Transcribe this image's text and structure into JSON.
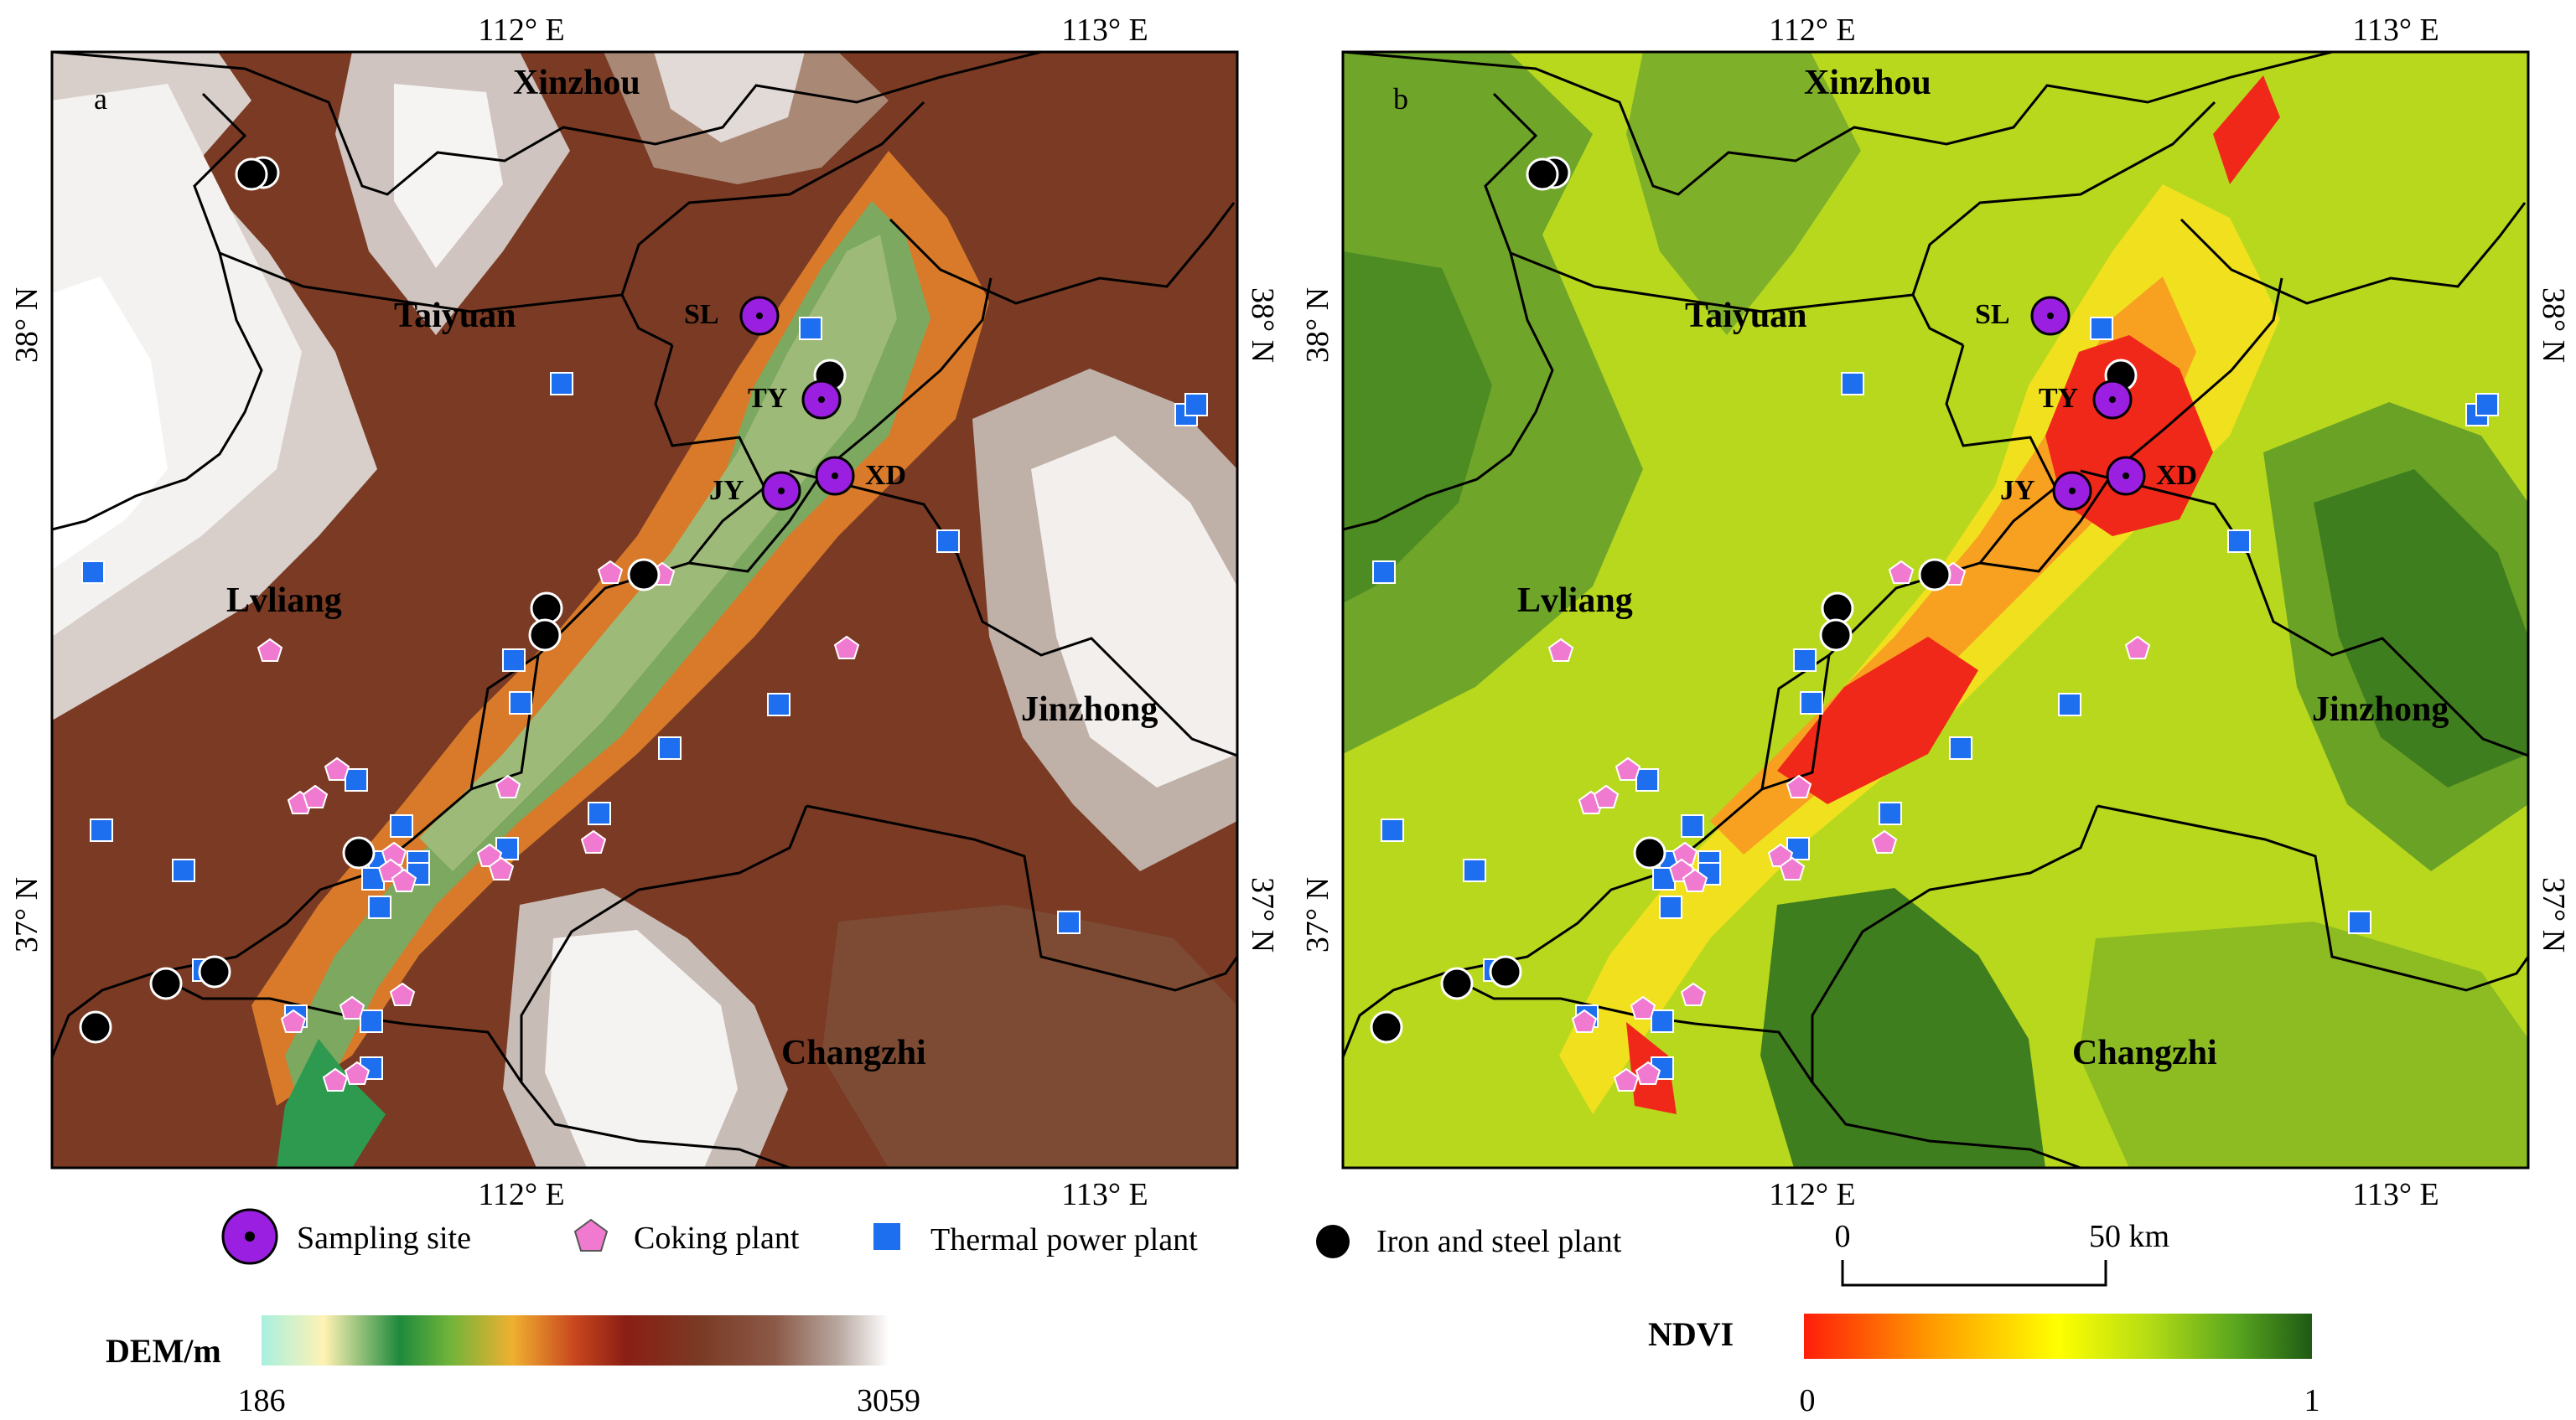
{
  "colors": {
    "sampling_site": "#9b1fe0",
    "coking_plant": "#f07ad0",
    "thermal_power_plant": "#1e6ef0",
    "iron_steel_plant": "#000000",
    "boundary": "#000000",
    "dem_ramp": [
      "#a8f0e0",
      "#fff2b3",
      "#1e8a3c",
      "#6fb43a",
      "#f0b030",
      "#c8461e",
      "#8b1e14",
      "#7a3a24",
      "#8c5a48",
      "#b8a8a0",
      "#ffffff"
    ],
    "ndvi_ramp": [
      "#ff1e0a",
      "#ff9a00",
      "#ffff00",
      "#b4dc14",
      "#5aa61e",
      "#1e5a14"
    ]
  },
  "panels": [
    {
      "id": "a",
      "letter": "a",
      "layer": "DEM",
      "top_lon": [
        "112° E",
        "113° E"
      ],
      "bottom_lon": [
        "112° E",
        "113° E"
      ],
      "left_lat": [
        "38° N",
        "37° N"
      ],
      "right_lat": [
        "38° N",
        "37° N"
      ],
      "cities": [
        "Xinzhou",
        "Taiyuan",
        "Lvliang",
        "Jinzhong",
        "Changzhi"
      ],
      "sites": [
        "SL",
        "TY",
        "JY",
        "XD"
      ]
    },
    {
      "id": "b",
      "letter": "b",
      "layer": "NDVI",
      "top_lon": [
        "112° E",
        "113° E"
      ],
      "bottom_lon": [
        "112° E",
        "113° E"
      ],
      "left_lat": [
        "38° N",
        "37° N"
      ],
      "right_lat": [
        "38° N",
        "37° N"
      ],
      "cities": [
        "Xinzhou",
        "Taiyuan",
        "Lvliang",
        "Jinzhong",
        "Changzhi"
      ],
      "sites": [
        "SL",
        "TY",
        "JY",
        "XD"
      ]
    }
  ],
  "legend": {
    "sampling_site": "Sampling site",
    "coking_plant": "Coking plant",
    "thermal_power_plant": "Thermal power plant",
    "iron_steel_plant": "Iron and steel plant"
  },
  "scalebar": {
    "start": "0",
    "end": "50 km"
  },
  "dem_bar": {
    "title": "DEM/m",
    "min": "186",
    "max": "3059"
  },
  "ndvi_bar": {
    "title": "NDVI",
    "min": "0",
    "max": "1"
  }
}
